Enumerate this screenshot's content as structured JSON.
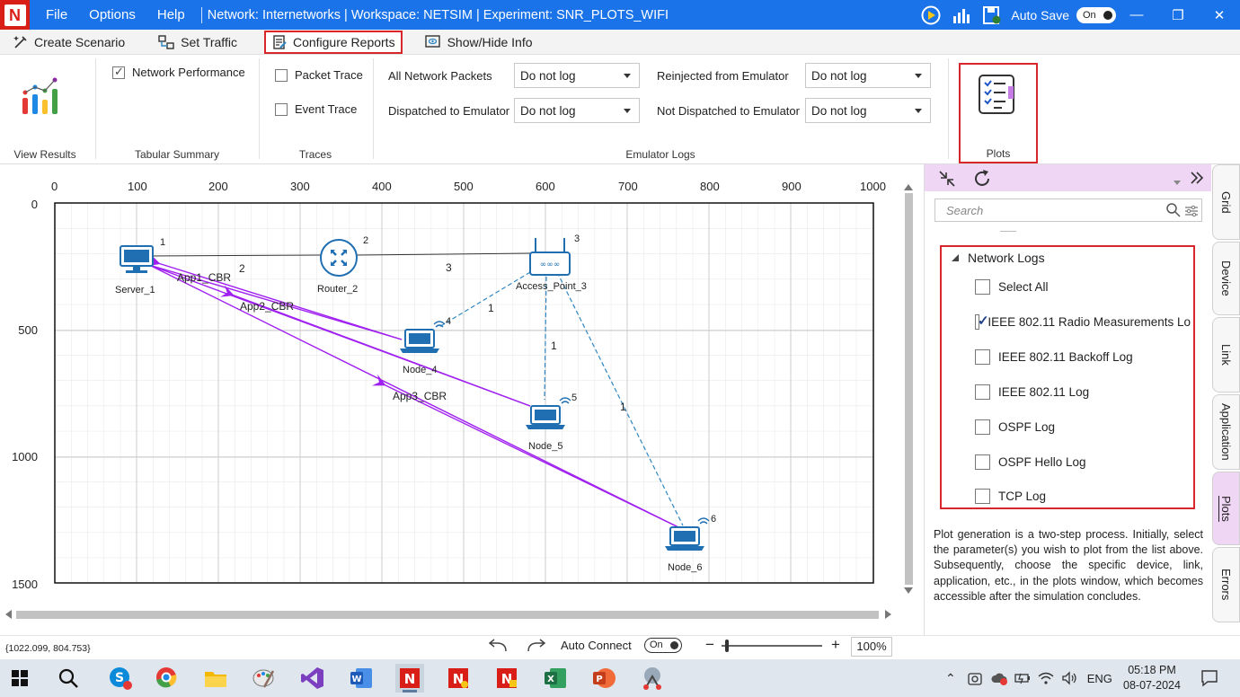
{
  "titlebar": {
    "menu": [
      "File",
      "Options",
      "Help"
    ],
    "title": "Network: Internetworks | Workspace: NETSIM | Experiment: SNR_PLOTS_WIFI",
    "autosave_label": "Auto Save",
    "autosave_state": "On"
  },
  "ribbon_tabs": {
    "create_scenario": "Create Scenario",
    "set_traffic": "Set Traffic",
    "configure_reports": "Configure Reports",
    "show_hide_info": "Show/Hide Info"
  },
  "ribbon": {
    "view_results": "View Results",
    "network_performance": "Network Performance",
    "tabular_summary": "Tabular Summary",
    "packet_trace": "Packet Trace",
    "event_trace": "Event Trace",
    "traces": "Traces",
    "emulator_logs": "Emulator Logs",
    "plots": "Plots",
    "emu": {
      "all_network_packets": "All Network Packets",
      "all_network_packets_value": "Do not log",
      "reinjected": "Reinjected from Emulator",
      "reinjected_value": "Do not log",
      "dispatched": "Dispatched to Emulator",
      "dispatched_value": "Do not log",
      "not_dispatched": "Not Dispatched to Emulator",
      "not_dispatched_value": "Do not log"
    }
  },
  "canvas": {
    "x_ticks": [
      "0",
      "100",
      "200",
      "300",
      "400",
      "500",
      "600",
      "700",
      "800",
      "900",
      "1000"
    ],
    "y_ticks": [
      "0",
      "500",
      "1000",
      "1500"
    ],
    "nodes": {
      "server": {
        "name": "Server_1",
        "id": "1"
      },
      "router": {
        "name": "Router_2",
        "id": "2"
      },
      "ap": {
        "name": "Access_Point_3",
        "id": "3"
      },
      "node4": {
        "name": "Node_4",
        "id": "4"
      },
      "node5": {
        "name": "Node_5",
        "id": "5"
      },
      "node6": {
        "name": "Node_6",
        "id": "6"
      }
    },
    "links": {
      "l_server_router": "2",
      "l_router_ap": "3",
      "l_ap_n4": "1",
      "l_ap_n5": "1",
      "l_ap_n6": "1"
    },
    "apps": [
      "App1_CBR",
      "App2_CBR",
      "App3_CBR"
    ]
  },
  "panel": {
    "search_placeholder": "Search",
    "network_logs": "Network Logs",
    "items": [
      {
        "label": "Select All",
        "checked": false
      },
      {
        "label": "IEEE 802.11 Radio Measurements Lo",
        "checked": true
      },
      {
        "label": "IEEE 802.11 Backoff Log",
        "checked": false
      },
      {
        "label": "IEEE 802.11 Log",
        "checked": false
      },
      {
        "label": "OSPF Log",
        "checked": false
      },
      {
        "label": "OSPF Hello Log",
        "checked": false
      },
      {
        "label": "TCP Log",
        "checked": false
      }
    ],
    "help": "Plot generation is a two-step process. Initially, select the parameter(s) you wish to plot from the list above. Subsequently, choose the specific device, link, application, etc., in the plots window, which becomes accessible after the simulation concludes."
  },
  "side_tabs": [
    "Grid",
    "Device",
    "Link",
    "Application",
    "Plots",
    "Errors"
  ],
  "status": {
    "coords": "{1022.099, 804.753}",
    "auto_connect": "Auto Connect",
    "auto_connect_state": "On",
    "zoom": "100%"
  },
  "taskbar": {
    "lang": "ENG",
    "time": "05:18 PM",
    "date": "08-07-2024"
  },
  "colors": {
    "titlebar": "#1a73e8",
    "highlight": "#d9262b",
    "app_flow": "#a020f0",
    "wireless": "#2e86c1",
    "panel_accent": "#f0d6f5"
  }
}
